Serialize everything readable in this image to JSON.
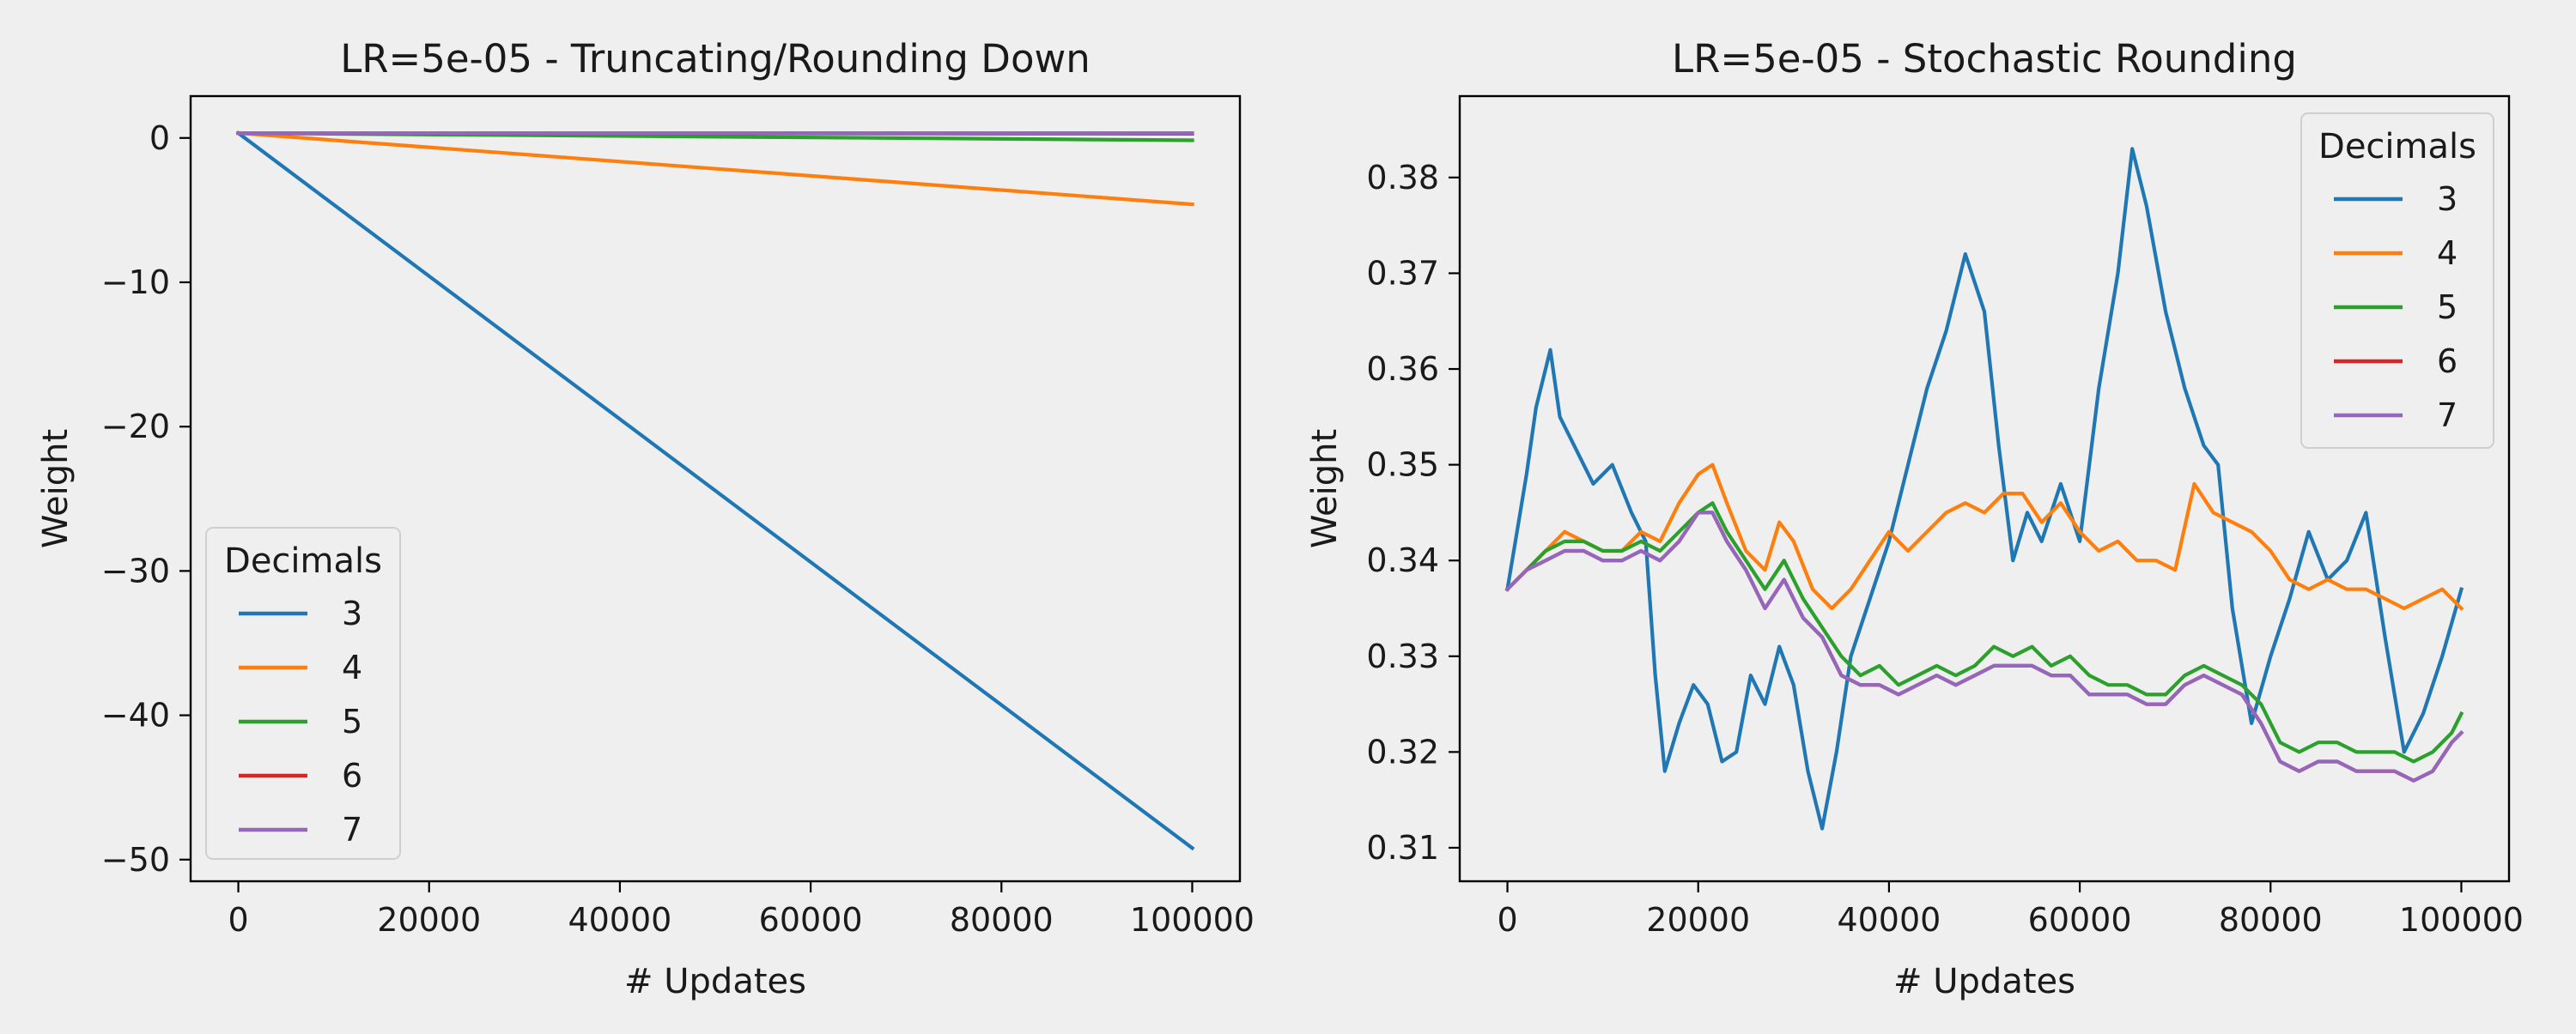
{
  "chart_data": [
    {
      "type": "line",
      "title": "LR=5e-05 - Truncating/Rounding Down",
      "xlabel": "# Updates",
      "ylabel": "Weight",
      "xlim": [
        -5000,
        105000
      ],
      "ylim": [
        -51.5,
        2.9
      ],
      "xticks": [
        0,
        20000,
        40000,
        60000,
        80000,
        100000
      ],
      "xtick_labels": [
        "0",
        "20000",
        "40000",
        "60000",
        "80000",
        "100000"
      ],
      "yticks": [
        0,
        -10,
        -20,
        -30,
        -40,
        -50
      ],
      "ytick_labels": [
        "0",
        "−10",
        "−20",
        "−30",
        "−40",
        "−50"
      ],
      "legend": {
        "title": "Decimals",
        "position": "lower-left"
      },
      "series": [
        {
          "name": "3",
          "color": "#1f77b4",
          "x": [
            0,
            100000
          ],
          "y": [
            0.34,
            -49.2
          ]
        },
        {
          "name": "4",
          "color": "#ff7f0e",
          "x": [
            0,
            100000
          ],
          "y": [
            0.34,
            -4.6
          ]
        },
        {
          "name": "5",
          "color": "#2ca02c",
          "x": [
            0,
            100000
          ],
          "y": [
            0.34,
            -0.16
          ]
        },
        {
          "name": "6",
          "color": "#d62728",
          "x": [
            0,
            100000
          ],
          "y": [
            0.34,
            0.29
          ]
        },
        {
          "name": "7",
          "color": "#9467bd",
          "x": [
            0,
            100000
          ],
          "y": [
            0.34,
            0.335
          ]
        }
      ]
    },
    {
      "type": "line",
      "title": "LR=5e-05 - Stochastic Rounding",
      "xlabel": "# Updates",
      "ylabel": "Weight",
      "xlim": [
        -5000,
        105000
      ],
      "ylim": [
        0.3065,
        0.3885
      ],
      "xticks": [
        0,
        20000,
        40000,
        60000,
        80000,
        100000
      ],
      "xtick_labels": [
        "0",
        "20000",
        "40000",
        "60000",
        "80000",
        "100000"
      ],
      "yticks": [
        0.31,
        0.32,
        0.33,
        0.34,
        0.35,
        0.36,
        0.37,
        0.38
      ],
      "ytick_labels": [
        "0.31",
        "0.32",
        "0.33",
        "0.34",
        "0.35",
        "0.36",
        "0.37",
        "0.38"
      ],
      "legend": {
        "title": "Decimals",
        "position": "upper-right"
      },
      "series": [
        {
          "name": "3",
          "color": "#1f77b4",
          "x": [
            0,
            1000,
            2000,
            3000,
            4500,
            5500,
            7000,
            9000,
            11000,
            13000,
            14500,
            15500,
            16500,
            18000,
            19500,
            21000,
            22500,
            24000,
            25500,
            27000,
            28500,
            30000,
            31500,
            33000,
            34500,
            36000,
            38000,
            40000,
            42000,
            44000,
            46000,
            48000,
            50000,
            51500,
            53000,
            54500,
            56000,
            58000,
            60000,
            62000,
            64000,
            65500,
            67000,
            69000,
            71000,
            73000,
            74500,
            76000,
            78000,
            80000,
            82000,
            84000,
            86000,
            88000,
            90000,
            92000,
            94000,
            96000,
            98000,
            100000
          ],
          "y": [
            0.337,
            0.343,
            0.349,
            0.356,
            0.362,
            0.355,
            0.352,
            0.348,
            0.35,
            0.345,
            0.342,
            0.328,
            0.318,
            0.323,
            0.327,
            0.325,
            0.319,
            0.32,
            0.328,
            0.325,
            0.331,
            0.327,
            0.318,
            0.312,
            0.32,
            0.33,
            0.336,
            0.342,
            0.35,
            0.358,
            0.364,
            0.372,
            0.366,
            0.352,
            0.34,
            0.345,
            0.342,
            0.348,
            0.342,
            0.358,
            0.37,
            0.383,
            0.377,
            0.366,
            0.358,
            0.352,
            0.35,
            0.335,
            0.323,
            0.33,
            0.336,
            0.343,
            0.338,
            0.34,
            0.345,
            0.332,
            0.32,
            0.324,
            0.33,
            0.337
          ]
        },
        {
          "name": "4",
          "color": "#ff7f0e",
          "x": [
            0,
            2000,
            4000,
            6000,
            8000,
            10000,
            12000,
            14000,
            16000,
            18000,
            20000,
            21500,
            23000,
            25000,
            27000,
            28500,
            30000,
            32000,
            34000,
            36000,
            38000,
            40000,
            42000,
            44000,
            46000,
            48000,
            50000,
            52000,
            54000,
            56000,
            58000,
            60000,
            62000,
            64000,
            66000,
            68000,
            70000,
            72000,
            74000,
            76000,
            78000,
            80000,
            82000,
            84000,
            86000,
            88000,
            90000,
            92000,
            94000,
            96000,
            98000,
            100000
          ],
          "y": [
            0.337,
            0.339,
            0.341,
            0.343,
            0.342,
            0.341,
            0.341,
            0.343,
            0.342,
            0.346,
            0.349,
            0.35,
            0.346,
            0.341,
            0.339,
            0.344,
            0.342,
            0.337,
            0.335,
            0.337,
            0.34,
            0.343,
            0.341,
            0.343,
            0.345,
            0.346,
            0.345,
            0.347,
            0.347,
            0.344,
            0.346,
            0.343,
            0.341,
            0.342,
            0.34,
            0.34,
            0.339,
            0.348,
            0.345,
            0.344,
            0.343,
            0.341,
            0.338,
            0.337,
            0.338,
            0.337,
            0.337,
            0.336,
            0.335,
            0.336,
            0.337,
            0.335
          ]
        },
        {
          "name": "5",
          "color": "#2ca02c",
          "x": [
            0,
            2000,
            4000,
            6000,
            8000,
            10000,
            12000,
            14000,
            16000,
            18000,
            20000,
            21500,
            23000,
            25000,
            27000,
            29000,
            31000,
            33000,
            35000,
            37000,
            39000,
            41000,
            43000,
            45000,
            47000,
            49000,
            51000,
            53000,
            55000,
            57000,
            59000,
            61000,
            63000,
            65000,
            67000,
            69000,
            71000,
            73000,
            75000,
            77000,
            79000,
            81000,
            83000,
            85000,
            87000,
            89000,
            91000,
            93000,
            95000,
            97000,
            99000,
            100000
          ],
          "y": [
            0.337,
            0.339,
            0.341,
            0.342,
            0.342,
            0.341,
            0.341,
            0.342,
            0.341,
            0.343,
            0.345,
            0.346,
            0.343,
            0.34,
            0.337,
            0.34,
            0.336,
            0.333,
            0.33,
            0.328,
            0.329,
            0.327,
            0.328,
            0.329,
            0.328,
            0.329,
            0.331,
            0.33,
            0.331,
            0.329,
            0.33,
            0.328,
            0.327,
            0.327,
            0.326,
            0.326,
            0.328,
            0.329,
            0.328,
            0.327,
            0.325,
            0.321,
            0.32,
            0.321,
            0.321,
            0.32,
            0.32,
            0.32,
            0.319,
            0.32,
            0.322,
            0.324
          ]
        },
        {
          "name": "6",
          "color": "#d62728",
          "x": [
            0,
            2000,
            4000,
            6000,
            8000,
            10000,
            12000,
            14000,
            16000,
            18000,
            20000,
            21500,
            23000,
            25000,
            27000,
            29000,
            31000,
            33000,
            35000,
            37000,
            39000,
            41000,
            43000,
            45000,
            47000,
            49000,
            51000,
            53000,
            55000,
            57000,
            59000,
            61000,
            63000,
            65000,
            67000,
            69000,
            71000,
            73000,
            75000,
            77000,
            79000,
            81000,
            83000,
            85000,
            87000,
            89000,
            91000,
            93000,
            95000,
            97000,
            99000,
            100000
          ],
          "y": [
            0.337,
            0.339,
            0.34,
            0.341,
            0.341,
            0.34,
            0.34,
            0.341,
            0.34,
            0.342,
            0.345,
            0.345,
            0.342,
            0.339,
            0.335,
            0.338,
            0.334,
            0.332,
            0.328,
            0.327,
            0.327,
            0.326,
            0.327,
            0.328,
            0.327,
            0.328,
            0.329,
            0.329,
            0.329,
            0.328,
            0.328,
            0.326,
            0.326,
            0.326,
            0.325,
            0.325,
            0.327,
            0.328,
            0.327,
            0.326,
            0.323,
            0.319,
            0.318,
            0.319,
            0.319,
            0.318,
            0.318,
            0.318,
            0.317,
            0.318,
            0.321,
            0.322
          ]
        },
        {
          "name": "7",
          "color": "#9467bd",
          "x": [
            0,
            2000,
            4000,
            6000,
            8000,
            10000,
            12000,
            14000,
            16000,
            18000,
            20000,
            21500,
            23000,
            25000,
            27000,
            29000,
            31000,
            33000,
            35000,
            37000,
            39000,
            41000,
            43000,
            45000,
            47000,
            49000,
            51000,
            53000,
            55000,
            57000,
            59000,
            61000,
            63000,
            65000,
            67000,
            69000,
            71000,
            73000,
            75000,
            77000,
            79000,
            81000,
            83000,
            85000,
            87000,
            89000,
            91000,
            93000,
            95000,
            97000,
            99000,
            100000
          ],
          "y": [
            0.337,
            0.339,
            0.34,
            0.341,
            0.341,
            0.34,
            0.34,
            0.341,
            0.34,
            0.342,
            0.345,
            0.345,
            0.342,
            0.339,
            0.335,
            0.338,
            0.334,
            0.332,
            0.328,
            0.327,
            0.327,
            0.326,
            0.327,
            0.328,
            0.327,
            0.328,
            0.329,
            0.329,
            0.329,
            0.328,
            0.328,
            0.326,
            0.326,
            0.326,
            0.325,
            0.325,
            0.327,
            0.328,
            0.327,
            0.326,
            0.323,
            0.319,
            0.318,
            0.319,
            0.319,
            0.318,
            0.318,
            0.318,
            0.317,
            0.318,
            0.321,
            0.322
          ]
        }
      ]
    }
  ]
}
